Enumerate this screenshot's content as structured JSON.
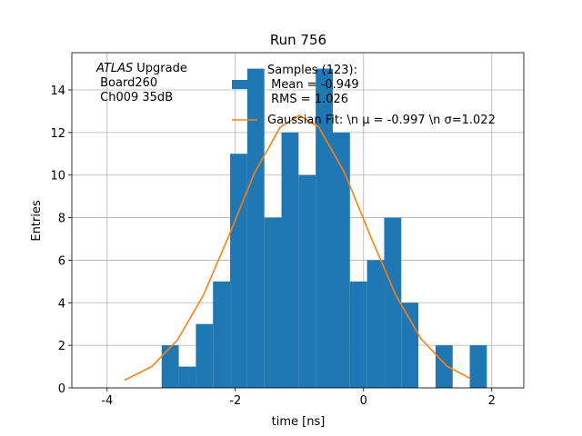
{
  "chart_data": {
    "type": "histogram",
    "title": "Run 756",
    "xlabel": "time [ns]",
    "ylabel": "Entries",
    "annotation": {
      "experiment": "ATLAS",
      "lines": [
        "Upgrade",
        " Board260",
        " Ch009 35dB"
      ]
    },
    "bins": [
      -3.149,
      -2.882,
      -2.615,
      -2.348,
      -2.081,
      -1.814,
      -1.547,
      -1.28,
      -1.013,
      -0.746,
      -0.479,
      -0.212,
      0.055,
      0.322,
      0.589,
      0.856,
      1.123,
      1.39,
      1.657,
      1.924
    ],
    "series": [
      {
        "name": "Samples (123):\n Mean = -0.949\n RMS = 1.026",
        "color": "#1f77b4",
        "type": "histogram",
        "values": [
          2,
          1,
          3,
          5,
          11,
          15,
          8,
          12,
          10,
          15,
          12,
          5,
          6,
          8,
          4,
          0,
          2,
          0,
          2
        ]
      },
      {
        "name": "Gaussian Fit: \\n μ = -0.997 \\n σ=1.022",
        "color": "#ff7f0e",
        "type": "line",
        "x": [
          -3.73,
          -3.3,
          -2.9,
          -2.5,
          -2.1,
          -1.7,
          -1.3,
          -1.0,
          -0.7,
          -0.3,
          0.1,
          0.5,
          0.9,
          1.3,
          1.67
        ],
        "values": [
          0.36,
          1.01,
          2.26,
          4.34,
          7.15,
          10.1,
          12.25,
          12.8,
          12.26,
          10.14,
          7.19,
          4.38,
          2.29,
          1.02,
          0.43
        ]
      }
    ],
    "xlim": [
      -4.55,
      2.5
    ],
    "ylim": [
      0,
      15.75
    ],
    "xticks": [
      -4,
      -2,
      0,
      2
    ],
    "yticks": [
      0,
      2,
      4,
      6,
      8,
      10,
      12,
      14
    ],
    "grid": true,
    "legend": "upper center"
  }
}
